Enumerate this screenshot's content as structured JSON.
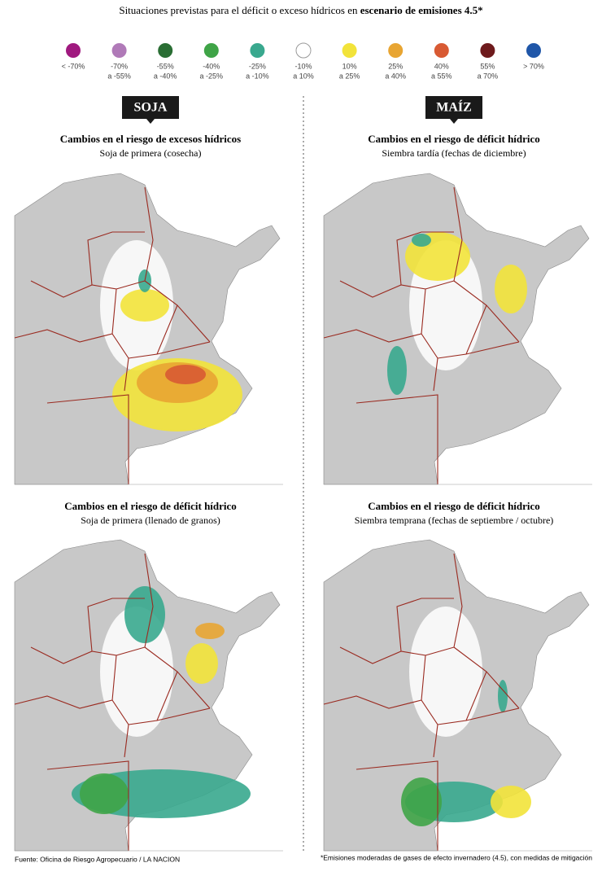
{
  "header": {
    "title": "Situaciones previstas para el déficit o exceso hídricos en",
    "title_bold": "escenario de emisiones 4.5*"
  },
  "legend": [
    {
      "color": "#a0197f",
      "lines": [
        "< -70%"
      ]
    },
    {
      "color": "#b07ab8",
      "lines": [
        "-70%",
        "a -55%"
      ]
    },
    {
      "color": "#2a6e34",
      "lines": [
        "-55%",
        "a -40%"
      ]
    },
    {
      "color": "#3fa447",
      "lines": [
        "-40%",
        "a -25%"
      ]
    },
    {
      "color": "#39a88e",
      "lines": [
        "-25%",
        "a -10%"
      ]
    },
    {
      "color": "#ffffff",
      "lines": [
        "-10%",
        "a 10%"
      ]
    },
    {
      "color": "#f2e33a",
      "lines": [
        "10%",
        "a 25%"
      ]
    },
    {
      "color": "#e8a532",
      "lines": [
        "25%",
        "a 40%"
      ]
    },
    {
      "color": "#d85a33",
      "lines": [
        "40%",
        "a 55%"
      ]
    },
    {
      "color": "#6e1a1c",
      "lines": [
        "55%",
        "a 70%"
      ]
    },
    {
      "color": "#1f56a8",
      "lines": [
        "> 70%"
      ]
    }
  ],
  "sections": [
    {
      "label": "SOJA"
    },
    {
      "label": "MAÍZ"
    }
  ],
  "panels": [
    {
      "title": "Cambios en el riesgo de excesos hídricos",
      "subtitle": "Soja de primera (cosecha)"
    },
    {
      "title": "Cambios en el riesgo de déficit hídrico",
      "subtitle": "Siembra tardía (fechas de diciembre)"
    },
    {
      "title": "Cambios en el riesgo de déficit hídrico",
      "subtitle": "Soja de primera (llenado de granos)"
    },
    {
      "title": "Cambios en el riesgo de déficit hídrico",
      "subtitle": "Siembra temprana (fechas de septiembre / octubre)"
    }
  ],
  "footer": {
    "source": "Fuente: Oficina de Riesgo Agropecuario / LA NACION",
    "note": "*Emisiones moderadas de gases de efecto invernadero (4.5), con medidas de mitigación"
  }
}
